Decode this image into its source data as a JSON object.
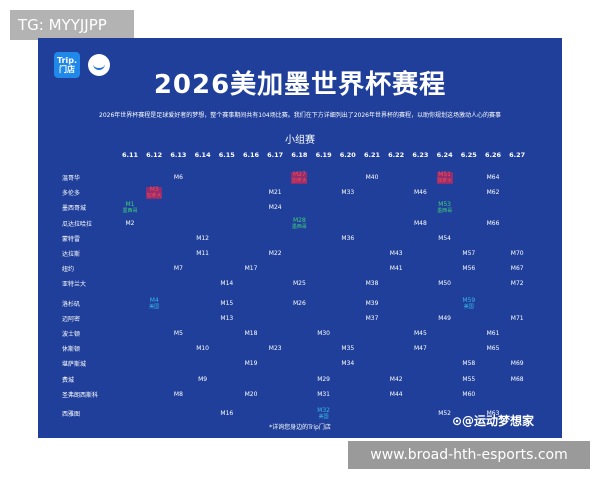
{
  "tag_label": "TG: MYYJJPP",
  "footer_url": "www.broad-hth-esports.com",
  "poster": {
    "logo_text": "Trip.\n门店",
    "title": "2026美加墨世界杯赛程",
    "intro": "2026年世界杯赛程是足球爱好者的梦想，整个赛事期间共有104场比赛。我们在下方详细列出了2026年世界杯的赛程，以助你规划这场激动人心的赛事",
    "group_label": "小组赛",
    "dates": [
      "6.11",
      "6.12",
      "6.13",
      "6.14",
      "6.15",
      "6.16",
      "6.17",
      "6.18",
      "6.19",
      "6.20",
      "6.21",
      "6.22",
      "6.23",
      "6.24",
      "6.25",
      "6.26",
      "6.27"
    ],
    "cities": [
      "温哥华",
      "多伦多",
      "墨西哥城",
      "瓜达拉哈拉",
      "蒙特雷",
      "达拉斯",
      "纽约",
      "亚特兰大",
      "洛杉矶",
      "迈阿密",
      "波士顿",
      "休斯顿",
      "堪萨斯城",
      "费城",
      "圣弗朗西斯科",
      "西雅图"
    ],
    "matches": [
      {
        "label": "M6",
        "city": 0,
        "date": 2,
        "color": "white",
        "sub": ""
      },
      {
        "label": "M27",
        "city": 0,
        "date": 7,
        "color": "red",
        "sub": "加拿大"
      },
      {
        "label": "M40",
        "city": 0,
        "date": 10,
        "color": "white",
        "sub": ""
      },
      {
        "label": "M51",
        "city": 0,
        "date": 13,
        "color": "red",
        "sub": "加拿大"
      },
      {
        "label": "M64",
        "city": 0,
        "date": 15,
        "color": "white",
        "sub": ""
      },
      {
        "label": "M3",
        "city": 1,
        "date": 1,
        "color": "red",
        "sub": "加拿大"
      },
      {
        "label": "M21",
        "city": 1,
        "date": 6,
        "color": "white",
        "sub": ""
      },
      {
        "label": "M33",
        "city": 1,
        "date": 9,
        "color": "white",
        "sub": ""
      },
      {
        "label": "M46",
        "city": 1,
        "date": 12,
        "color": "white",
        "sub": ""
      },
      {
        "label": "M62",
        "city": 1,
        "date": 15,
        "color": "white",
        "sub": ""
      },
      {
        "label": "M1",
        "city": 2,
        "date": 0,
        "color": "green",
        "sub": "墨西哥"
      },
      {
        "label": "M24",
        "city": 2,
        "date": 6,
        "color": "white",
        "sub": ""
      },
      {
        "label": "M53",
        "city": 2,
        "date": 13,
        "color": "green",
        "sub": "墨西哥"
      },
      {
        "label": "M2",
        "city": 3,
        "date": 0,
        "color": "white",
        "sub": ""
      },
      {
        "label": "M28",
        "city": 3,
        "date": 7,
        "color": "green",
        "sub": "墨西哥"
      },
      {
        "label": "M48",
        "city": 3,
        "date": 12,
        "color": "white",
        "sub": ""
      },
      {
        "label": "M66",
        "city": 3,
        "date": 15,
        "color": "white",
        "sub": ""
      },
      {
        "label": "M12",
        "city": 4,
        "date": 3,
        "color": "white",
        "sub": ""
      },
      {
        "label": "M36",
        "city": 4,
        "date": 9,
        "color": "white",
        "sub": ""
      },
      {
        "label": "M54",
        "city": 4,
        "date": 13,
        "color": "white",
        "sub": ""
      },
      {
        "label": "M11",
        "city": 5,
        "date": 3,
        "color": "white",
        "sub": ""
      },
      {
        "label": "M22",
        "city": 5,
        "date": 6,
        "color": "white",
        "sub": ""
      },
      {
        "label": "M43",
        "city": 5,
        "date": 11,
        "color": "white",
        "sub": ""
      },
      {
        "label": "M57",
        "city": 5,
        "date": 14,
        "color": "white",
        "sub": ""
      },
      {
        "label": "M70",
        "city": 5,
        "date": 16,
        "color": "white",
        "sub": ""
      },
      {
        "label": "M7",
        "city": 6,
        "date": 2,
        "color": "white",
        "sub": ""
      },
      {
        "label": "M17",
        "city": 6,
        "date": 5,
        "color": "white",
        "sub": ""
      },
      {
        "label": "M41",
        "city": 6,
        "date": 11,
        "color": "white",
        "sub": ""
      },
      {
        "label": "M56",
        "city": 6,
        "date": 14,
        "color": "white",
        "sub": ""
      },
      {
        "label": "M67",
        "city": 6,
        "date": 16,
        "color": "white",
        "sub": ""
      },
      {
        "label": "M14",
        "city": 7,
        "date": 4,
        "color": "white",
        "sub": ""
      },
      {
        "label": "M25",
        "city": 7,
        "date": 7,
        "color": "white",
        "sub": ""
      },
      {
        "label": "M38",
        "city": 7,
        "date": 10,
        "color": "white",
        "sub": ""
      },
      {
        "label": "M50",
        "city": 7,
        "date": 13,
        "color": "white",
        "sub": ""
      },
      {
        "label": "M72",
        "city": 7,
        "date": 16,
        "color": "white",
        "sub": ""
      },
      {
        "label": "M4",
        "city": 8,
        "date": 1,
        "color": "teal",
        "sub": "美国"
      },
      {
        "label": "M15",
        "city": 8,
        "date": 4,
        "color": "white",
        "sub": ""
      },
      {
        "label": "M26",
        "city": 8,
        "date": 7,
        "color": "white",
        "sub": ""
      },
      {
        "label": "M39",
        "city": 8,
        "date": 10,
        "color": "white",
        "sub": ""
      },
      {
        "label": "M59",
        "city": 8,
        "date": 14,
        "color": "teal",
        "sub": "美国"
      },
      {
        "label": "M13",
        "city": 9,
        "date": 4,
        "color": "white",
        "sub": ""
      },
      {
        "label": "M37",
        "city": 9,
        "date": 10,
        "color": "white",
        "sub": ""
      },
      {
        "label": "M49",
        "city": 9,
        "date": 13,
        "color": "white",
        "sub": ""
      },
      {
        "label": "M71",
        "city": 9,
        "date": 16,
        "color": "white",
        "sub": ""
      },
      {
        "label": "M5",
        "city": 10,
        "date": 2,
        "color": "white",
        "sub": ""
      },
      {
        "label": "M18",
        "city": 10,
        "date": 5,
        "color": "white",
        "sub": ""
      },
      {
        "label": "M30",
        "city": 10,
        "date": 8,
        "color": "white",
        "sub": ""
      },
      {
        "label": "M45",
        "city": 10,
        "date": 12,
        "color": "white",
        "sub": ""
      },
      {
        "label": "M61",
        "city": 10,
        "date": 15,
        "color": "white",
        "sub": ""
      },
      {
        "label": "M10",
        "city": 11,
        "date": 3,
        "color": "white",
        "sub": ""
      },
      {
        "label": "M23",
        "city": 11,
        "date": 6,
        "color": "white",
        "sub": ""
      },
      {
        "label": "M35",
        "city": 11,
        "date": 9,
        "color": "white",
        "sub": ""
      },
      {
        "label": "M47",
        "city": 11,
        "date": 12,
        "color": "white",
        "sub": ""
      },
      {
        "label": "M65",
        "city": 11,
        "date": 15,
        "color": "white",
        "sub": ""
      },
      {
        "label": "M19",
        "city": 12,
        "date": 5,
        "color": "white",
        "sub": ""
      },
      {
        "label": "M34",
        "city": 12,
        "date": 9,
        "color": "white",
        "sub": ""
      },
      {
        "label": "M58",
        "city": 12,
        "date": 14,
        "color": "white",
        "sub": ""
      },
      {
        "label": "M69",
        "city": 12,
        "date": 16,
        "color": "white",
        "sub": ""
      },
      {
        "label": "M9",
        "city": 13,
        "date": 3,
        "color": "white",
        "sub": ""
      },
      {
        "label": "M29",
        "city": 13,
        "date": 8,
        "color": "white",
        "sub": ""
      },
      {
        "label": "M42",
        "city": 13,
        "date": 11,
        "color": "white",
        "sub": ""
      },
      {
        "label": "M55",
        "city": 13,
        "date": 14,
        "color": "white",
        "sub": ""
      },
      {
        "label": "M68",
        "city": 13,
        "date": 16,
        "color": "white",
        "sub": ""
      },
      {
        "label": "M8",
        "city": 14,
        "date": 2,
        "color": "white",
        "sub": ""
      },
      {
        "label": "M20",
        "city": 14,
        "date": 5,
        "color": "white",
        "sub": ""
      },
      {
        "label": "M31",
        "city": 14,
        "date": 8,
        "color": "white",
        "sub": ""
      },
      {
        "label": "M44",
        "city": 14,
        "date": 11,
        "color": "white",
        "sub": ""
      },
      {
        "label": "M60",
        "city": 14,
        "date": 14,
        "color": "white",
        "sub": ""
      },
      {
        "label": "M16",
        "city": 15,
        "date": 4,
        "color": "white",
        "sub": ""
      },
      {
        "label": "M32",
        "city": 15,
        "date": 8,
        "color": "teal",
        "sub": "美国"
      },
      {
        "label": "M52",
        "city": 15,
        "date": 13,
        "color": "white",
        "sub": ""
      },
      {
        "label": "M63",
        "city": 15,
        "date": 15,
        "color": "white",
        "sub": ""
      }
    ],
    "footnote": "*详询您身边的Trip门店",
    "watermark": "⊙@运动梦想家"
  },
  "colors": {
    "poster_bg": "#1f3f9a",
    "host_canada": "#ff4a4a",
    "host_mexico": "#3fd27a",
    "host_usa": "#3ab6e8"
  }
}
